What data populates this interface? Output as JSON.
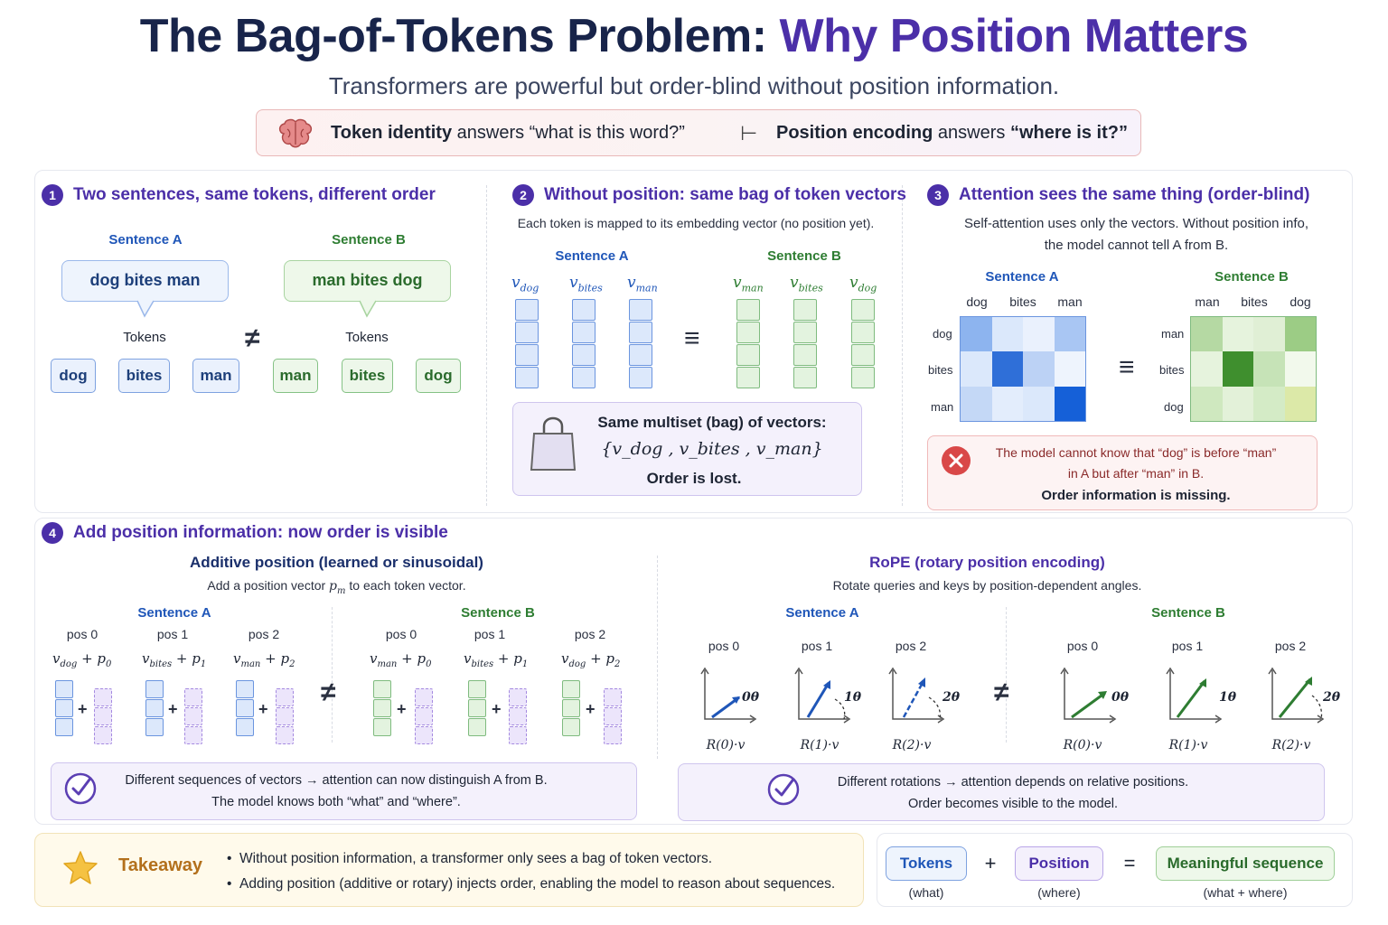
{
  "header": {
    "title_main": "The Bag-of-Tokens Problem: ",
    "title_accent": "Why Position Matters",
    "subtitle": "Transformers are powerful but order-blind without position information.",
    "banner": {
      "left_bold": "Token identity",
      "left_rest": " answers “what is this word?”",
      "arrow": "⊢",
      "right_bold": "Position encoding",
      "right_mid": " answers ",
      "right_bold2": "“where is it?”"
    }
  },
  "panel1": {
    "number": "1",
    "title": "Two sentences, same tokens, different order",
    "label_a": "Sentence A",
    "label_b": "Sentence B",
    "sentence_a": "dog bites man",
    "sentence_b": "man bites dog",
    "tokens_label": "Tokens",
    "tokens_a": [
      "dog",
      "bites",
      "man"
    ],
    "tokens_b": [
      "man",
      "bites",
      "dog"
    ],
    "neq": "≠"
  },
  "panel2": {
    "number": "2",
    "title": "Without position: same bag of token vectors",
    "desc": "Each token is mapped to its embedding vector (no position yet).",
    "label_a": "Sentence A",
    "label_b": "Sentence B",
    "vec_a": [
      {
        "v": "v",
        "sub": "dog"
      },
      {
        "v": "v",
        "sub": "bites"
      },
      {
        "v": "v",
        "sub": "man"
      }
    ],
    "vec_b": [
      {
        "v": "v",
        "sub": "man"
      },
      {
        "v": "v",
        "sub": "bites"
      },
      {
        "v": "v",
        "sub": "dog"
      }
    ],
    "equiv": "≡",
    "bag_title": "Same multiset (bag) of vectors:",
    "bag_set": "{v_dog , v_bites , v_man}",
    "bag_lost": "Order is lost."
  },
  "panel3": {
    "number": "3",
    "title": "Attention sees the same thing (order-blind)",
    "desc1": "Self-attention uses only the vectors. Without position info,",
    "desc2": "the model cannot tell A from B.",
    "label_a": "Sentence A",
    "label_b": "Sentence B",
    "cols_a": [
      "dog",
      "bites",
      "man"
    ],
    "rows_a": [
      "dog",
      "bites",
      "man"
    ],
    "cols_b": [
      "man",
      "bites",
      "dog"
    ],
    "rows_b": [
      "man",
      "bites",
      "dog"
    ],
    "equiv": "≡",
    "warn1": "The model cannot know that “dog” is before “man”",
    "warn2": "in A but after “man” in B.",
    "warn3": "Order information is missing.",
    "colors": {
      "blue_dark": "#1560d8",
      "green_dark": "#3f8f2e"
    }
  },
  "panel4": {
    "number": "4",
    "title": "Add position information: now order is visible",
    "additive": {
      "title": "Additive position (learned or sinusoidal)",
      "desc_pre": "Add a position vector ",
      "desc_sym": "p",
      "desc_sub": "m",
      "desc_post": " to each token vector.",
      "label_a": "Sentence A",
      "label_b": "Sentence B",
      "pos": [
        "pos 0",
        "pos 1",
        "pos 2"
      ],
      "expr_a": [
        {
          "v": "dog",
          "p": "0"
        },
        {
          "v": "bites",
          "p": "1"
        },
        {
          "v": "man",
          "p": "2"
        }
      ],
      "expr_b": [
        {
          "v": "man",
          "p": "0"
        },
        {
          "v": "bites",
          "p": "1"
        },
        {
          "v": "dog",
          "p": "2"
        }
      ],
      "neq": "≠",
      "note1": "Different sequences of vectors → attention can now distinguish A from B.",
      "note2": "The model knows both “what” and “where”."
    },
    "rope": {
      "title": "RoPE (rotary position encoding)",
      "desc": "Rotate queries and keys by position-dependent angles.",
      "label_a": "Sentence A",
      "label_b": "Sentence B",
      "pos": [
        "pos 0",
        "pos 1",
        "pos 2"
      ],
      "angles": [
        "0θ",
        "1θ",
        "2θ"
      ],
      "captions": [
        "R(0)·v",
        "R(1)·v",
        "R(2)·v"
      ],
      "neq": "≠",
      "note1": "Different rotations → attention depends on relative positions.",
      "note2": "Order becomes visible to the model."
    }
  },
  "takeaway": {
    "label": "Takeaway",
    "bullets": [
      "Without position information, a transformer only sees a bag of token vectors.",
      "Adding position (additive or rotary) injects order, enabling the model to reason about sequences."
    ],
    "eq": {
      "tokens": "Tokens",
      "tokens_sub": "(what)",
      "plus": "+",
      "position": "Position",
      "position_sub": "(where)",
      "equals": "=",
      "result": "Meaningful sequence",
      "result_sub": "(what + where)"
    }
  }
}
